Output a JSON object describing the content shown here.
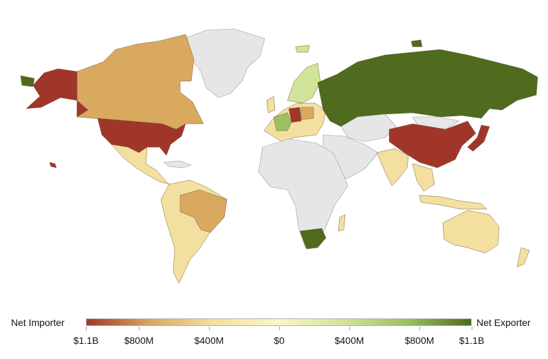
{
  "legend": {
    "left_label": "Net Importer",
    "right_label": "Net Exporter",
    "ticks": [
      "$1.1B",
      "$800M",
      "$400M",
      "$0",
      "$400M",
      "$800M",
      "$1.1B"
    ],
    "scale_signed_millions": [
      -1100,
      -800,
      -400,
      0,
      400,
      800,
      1100
    ],
    "colors": {
      "strong_importer": "#a0362a",
      "mid_importer": "#d9a960",
      "weak_importer": "#f3e0a0",
      "neutral": "#fbf7c8",
      "weak_exporter": "#d2e39a",
      "mid_exporter": "#9cc060",
      "strong_exporter": "#4e6b1e",
      "no_data": "#e6e6e6"
    }
  },
  "regions": {
    "no_data": [
      "greenland",
      "iceland",
      "africa",
      "middle-east",
      "central-asia",
      "mongolia",
      "arabia"
    ],
    "strong_importer": [
      "united-states",
      "alaska",
      "china",
      "japan",
      "germany",
      "hawaii"
    ],
    "mid_importer": [
      "canada",
      "brazil",
      "poland"
    ],
    "weak_importer": [
      "south-america",
      "mexico",
      "central-america",
      "india",
      "southeast-asia",
      "australia",
      "indonesia",
      "new-zealand",
      "europe",
      "middle-east-neutral",
      "madagascar-area"
    ],
    "mid_exporter": [
      "france",
      "scandinavia"
    ],
    "strong_exporter": [
      "russia",
      "south-africa"
    ]
  }
}
